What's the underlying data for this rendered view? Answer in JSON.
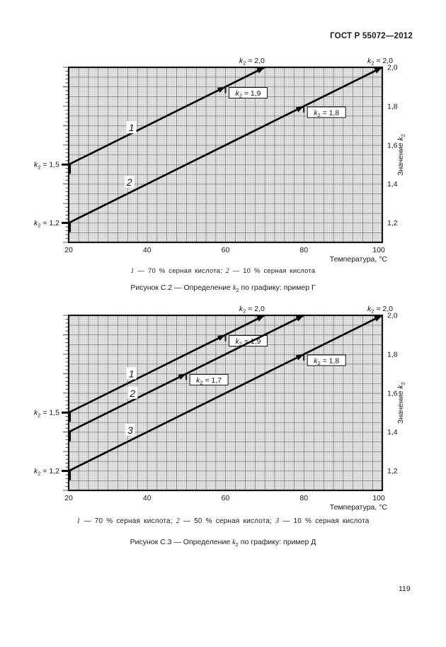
{
  "header": {
    "standard": "ГОСТ Р 55072—2012"
  },
  "page_number": "119",
  "chart_data": [
    {
      "type": "line",
      "title": "Рисунок С.2 — Определение k₂ по графику: пример Г",
      "xlabel": "Температура, °С",
      "ylabel": "Значение k₂",
      "xlim": [
        20,
        100
      ],
      "ylim": [
        1.1,
        2.0
      ],
      "x_ticks": [
        20,
        40,
        60,
        80,
        100
      ],
      "y_ticks": [
        2.0,
        1.8,
        1.6,
        1.4,
        1.2
      ],
      "grid": true,
      "legend_position": "below",
      "legend": [
        {
          "marker": "1",
          "text": "70 % серная кислота"
        },
        {
          "marker": "2",
          "text": "10 % серная кислота"
        }
      ],
      "series": [
        {
          "name": "1",
          "points": [
            [
              20,
              1.5
            ],
            [
              70,
              2.0
            ]
          ],
          "start_label": "k₂ = 1,5",
          "end_label": "k₂ = 2,0",
          "marker": {
            "x": 60,
            "y": 1.9,
            "label": "k₂ = 1,9"
          },
          "name_pos": [
            36,
            1.69
          ]
        },
        {
          "name": "2",
          "points": [
            [
              20,
              1.2
            ],
            [
              100,
              2.0
            ]
          ],
          "start_label": "k₂ = 1,2",
          "end_label": "k₂ = 2,0",
          "marker": {
            "x": 80,
            "y": 1.8,
            "label": "k₂ = 1,8"
          },
          "name_pos": [
            35.5,
            1.41
          ]
        }
      ]
    },
    {
      "type": "line",
      "title": "Рисунок С.3 — Определение k₂ по графику: пример Д",
      "xlabel": "Температура, °С",
      "ylabel": "Значение k₂",
      "xlim": [
        20,
        100
      ],
      "ylim": [
        1.1,
        2.0
      ],
      "x_ticks": [
        20,
        40,
        60,
        80,
        100
      ],
      "y_ticks": [
        2.0,
        1.8,
        1.6,
        1.4,
        1.2
      ],
      "grid": true,
      "legend_position": "below",
      "legend": [
        {
          "marker": "1",
          "text": "70 % серная кислота"
        },
        {
          "marker": "2",
          "text": "50 % серная кислота"
        },
        {
          "marker": "3",
          "text": "10 % серная кислота"
        }
      ],
      "series": [
        {
          "name": "1",
          "points": [
            [
              20,
              1.5
            ],
            [
              70,
              2.0
            ]
          ],
          "start_label": "k₂ = 1,5",
          "end_label": "k₂ = 2,0",
          "marker": {
            "x": 60,
            "y": 1.9,
            "label": "k₂ = 1,9"
          },
          "name_pos": [
            36,
            1.7
          ]
        },
        {
          "name": "2",
          "points": [
            [
              20,
              1.4
            ],
            [
              80,
              2.0
            ]
          ],
          "start_label": null,
          "end_label": null,
          "marker": {
            "x": 50,
            "y": 1.7,
            "label": "k₂ = 1,7"
          },
          "name_pos": [
            36.3,
            1.6
          ]
        },
        {
          "name": "3",
          "points": [
            [
              20,
              1.2
            ],
            [
              100,
              2.0
            ]
          ],
          "start_label": "k₂ = 1,2",
          "end_label": "k₂ = 2,0",
          "marker": {
            "x": 80,
            "y": 1.8,
            "label": "k₂ = 1,8"
          },
          "name_pos": [
            35.7,
            1.41
          ]
        }
      ]
    }
  ]
}
